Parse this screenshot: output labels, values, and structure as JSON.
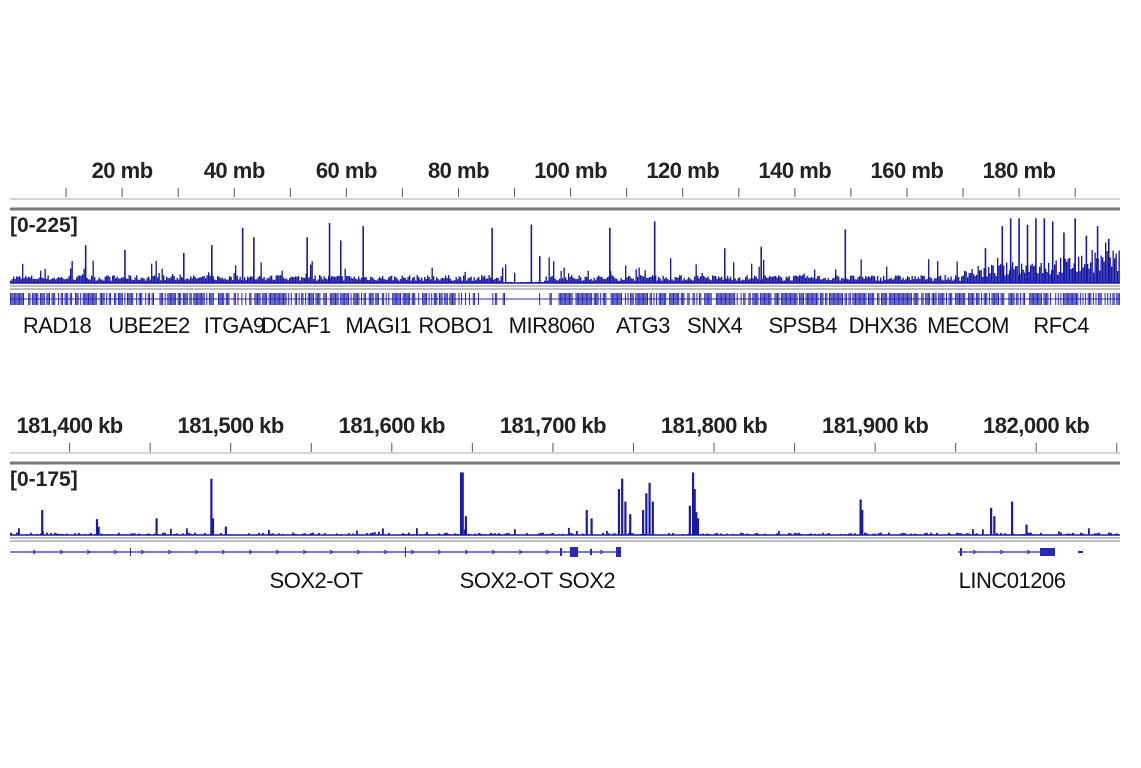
{
  "colors": {
    "signal": "#1a1aa8",
    "gene": "#2a2ab0",
    "axis": "#888888",
    "text": "#222222"
  },
  "chart_data": [
    {
      "type": "bar",
      "panel": "chromosome",
      "x_unit": "mb",
      "xlim": [
        0,
        198
      ],
      "ylim": [
        0,
        225
      ],
      "range_label": "[0-225]",
      "tick_labels": [
        {
          "value": 20,
          "label": "20 mb"
        },
        {
          "value": 40,
          "label": "40 mb"
        },
        {
          "value": 60,
          "label": "60 mb"
        },
        {
          "value": 80,
          "label": "80 mb"
        },
        {
          "value": 100,
          "label": "100 mb"
        },
        {
          "value": 120,
          "label": "120 mb"
        },
        {
          "value": 140,
          "label": "140 mb"
        },
        {
          "value": 160,
          "label": "160 mb"
        },
        {
          "value": 180,
          "label": "180 mb"
        }
      ],
      "minor_tick_step": 10,
      "peaks": [
        {
          "x": 13.5,
          "y": 120
        },
        {
          "x": 20.5,
          "y": 105
        },
        {
          "x": 31,
          "y": 95
        },
        {
          "x": 36,
          "y": 120
        },
        {
          "x": 41.5,
          "y": 175
        },
        {
          "x": 43.5,
          "y": 145
        },
        {
          "x": 53,
          "y": 145
        },
        {
          "x": 57,
          "y": 190
        },
        {
          "x": 59,
          "y": 135
        },
        {
          "x": 63,
          "y": 180
        },
        {
          "x": 86,
          "y": 175
        },
        {
          "x": 93,
          "y": 185
        },
        {
          "x": 94.5,
          "y": 85
        },
        {
          "x": 107,
          "y": 175
        },
        {
          "x": 115,
          "y": 195
        },
        {
          "x": 127.5,
          "y": 110
        },
        {
          "x": 134,
          "y": 115
        },
        {
          "x": 149,
          "y": 170
        },
        {
          "x": 174,
          "y": 110
        },
        {
          "x": 177,
          "y": 180
        },
        {
          "x": 178.5,
          "y": 205
        },
        {
          "x": 180,
          "y": 205
        },
        {
          "x": 181.5,
          "y": 185
        },
        {
          "x": 183,
          "y": 205
        },
        {
          "x": 184.5,
          "y": 205
        },
        {
          "x": 186,
          "y": 195
        },
        {
          "x": 188,
          "y": 160
        },
        {
          "x": 190,
          "y": 205
        },
        {
          "x": 192,
          "y": 150
        },
        {
          "x": 194,
          "y": 180
        },
        {
          "x": 196,
          "y": 140
        }
      ],
      "genes": [
        {
          "name": "RAD18",
          "x": 8.4
        },
        {
          "name": "UBE2E2",
          "x": 24.8
        },
        {
          "name": "ITGA9",
          "x": 40
        },
        {
          "name": "DCAF1",
          "x": 51
        },
        {
          "name": "MAGI1",
          "x": 65.7
        },
        {
          "name": "ROBO1",
          "x": 79.5
        },
        {
          "name": "MIR8060",
          "x": 96.6
        },
        {
          "name": "ATG3",
          "x": 112.9
        },
        {
          "name": "SNX4",
          "x": 125.7
        },
        {
          "name": "SPSB4",
          "x": 141.4
        },
        {
          "name": "DHX36",
          "x": 155.7
        },
        {
          "name": "MECOM",
          "x": 170.9
        },
        {
          "name": "RFC4",
          "x": 187.5
        }
      ]
    },
    {
      "type": "bar",
      "panel": "locus",
      "x_unit": "kb",
      "xlim": [
        181363,
        182052
      ],
      "ylim": [
        0,
        175
      ],
      "range_label": "[0-175]",
      "tick_labels": [
        {
          "value": 181400,
          "label": "181,400 kb"
        },
        {
          "value": 181500,
          "label": "181,500 kb"
        },
        {
          "value": 181600,
          "label": "181,600 kb"
        },
        {
          "value": 181700,
          "label": "181,700 kb"
        },
        {
          "value": 181800,
          "label": "181,800 kb"
        },
        {
          "value": 181900,
          "label": "181,900 kb"
        },
        {
          "value": 182000,
          "label": "182,000 kb"
        }
      ],
      "minor_tick_step": 50,
      "peaks": [
        {
          "x": 181383,
          "y": 60
        },
        {
          "x": 181417,
          "y": 38
        },
        {
          "x": 181418,
          "y": 20
        },
        {
          "x": 181454,
          "y": 40
        },
        {
          "x": 181488,
          "y": 135
        },
        {
          "x": 181489,
          "y": 40
        },
        {
          "x": 181497,
          "y": 20
        },
        {
          "x": 181643,
          "y": 150
        },
        {
          "x": 181644,
          "y": 150
        },
        {
          "x": 181646,
          "y": 45
        },
        {
          "x": 181721,
          "y": 60
        },
        {
          "x": 181724,
          "y": 40
        },
        {
          "x": 181741,
          "y": 110
        },
        {
          "x": 181743,
          "y": 135
        },
        {
          "x": 181745,
          "y": 80
        },
        {
          "x": 181748,
          "y": 50
        },
        {
          "x": 181756,
          "y": 60
        },
        {
          "x": 181758,
          "y": 100
        },
        {
          "x": 181760,
          "y": 125
        },
        {
          "x": 181762,
          "y": 80
        },
        {
          "x": 181785,
          "y": 70
        },
        {
          "x": 181787,
          "y": 150
        },
        {
          "x": 181788,
          "y": 110
        },
        {
          "x": 181790,
          "y": 40
        },
        {
          "x": 181789,
          "y": 55
        },
        {
          "x": 181891,
          "y": 85
        },
        {
          "x": 181892,
          "y": 60
        },
        {
          "x": 181972,
          "y": 65
        },
        {
          "x": 181974,
          "y": 45
        },
        {
          "x": 181985,
          "y": 80
        },
        {
          "x": 181994,
          "y": 25
        }
      ],
      "genes": [
        {
          "name": "SOX2-OT",
          "x": 181553
        },
        {
          "name": "SOX2-OT",
          "x": 181671
        },
        {
          "name": "SOX2",
          "x": 181721
        },
        {
          "name": "LINC01206",
          "x": 181985
        }
      ]
    }
  ]
}
